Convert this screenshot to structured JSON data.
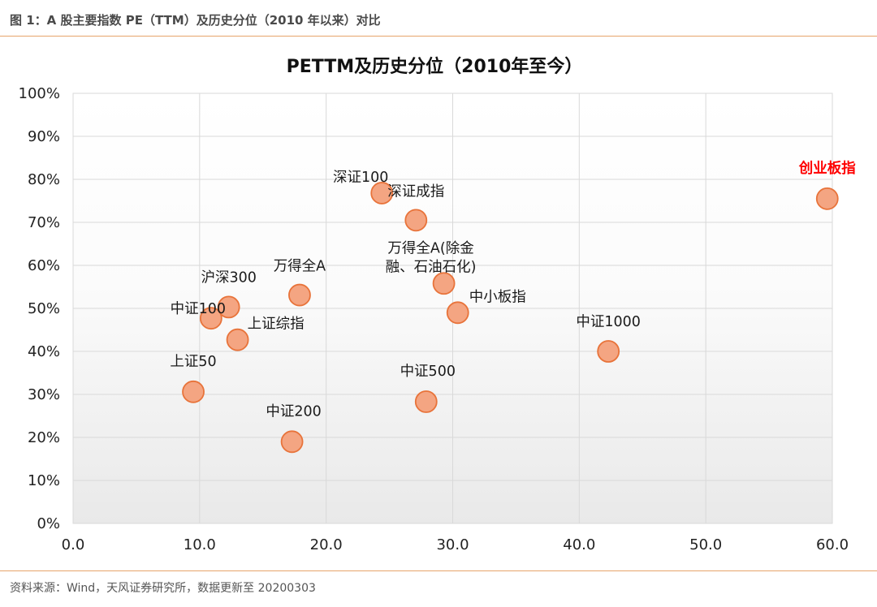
{
  "header": {
    "figure_title": "图 1：A 股主要指数 PE（TTM）及历史分位（2010 年以来）对比"
  },
  "footer": {
    "source": "资料来源：Wind，天风证券研究所，数据更新至 20200303"
  },
  "chart_data": {
    "type": "scatter",
    "title": "PETTM及历史分位（2010年至今）",
    "xlabel": "",
    "ylabel": "",
    "xlim": [
      0,
      60
    ],
    "ylim": [
      0,
      1
    ],
    "x_ticks": [
      "0.0",
      "10.0",
      "20.0",
      "30.0",
      "40.0",
      "50.0",
      "60.0"
    ],
    "y_ticks": [
      "0%",
      "10%",
      "20%",
      "30%",
      "40%",
      "50%",
      "60%",
      "70%",
      "80%",
      "90%",
      "100%"
    ],
    "grid": true,
    "legend": "none",
    "marker_color": "#f4a582",
    "marker_edge_color": "#e8733a",
    "highlight_label_color": "#ff0000",
    "points": [
      {
        "label": "创业板指",
        "x": 59.6,
        "y": 0.755,
        "highlight": true
      },
      {
        "label": "深证100",
        "x": 24.4,
        "y": 0.768
      },
      {
        "label": "深证成指",
        "x": 27.1,
        "y": 0.705
      },
      {
        "label": "万得全A(除金融、石油石化)",
        "label_lines": [
          "万得全A(除金",
          "融、石油石化)"
        ],
        "x": 29.3,
        "y": 0.558
      },
      {
        "label": "中小板指",
        "x": 30.4,
        "y": 0.49
      },
      {
        "label": "万得全A",
        "x": 17.9,
        "y": 0.531
      },
      {
        "label": "沪深300",
        "x": 12.3,
        "y": 0.503
      },
      {
        "label": "中证100",
        "x": 10.9,
        "y": 0.477
      },
      {
        "label": "上证综指",
        "x": 13.0,
        "y": 0.427
      },
      {
        "label": "中证1000",
        "x": 42.3,
        "y": 0.4
      },
      {
        "label": "上证50",
        "x": 9.5,
        "y": 0.306
      },
      {
        "label": "中证500",
        "x": 27.9,
        "y": 0.283
      },
      {
        "label": "中证200",
        "x": 17.3,
        "y": 0.19
      }
    ]
  }
}
